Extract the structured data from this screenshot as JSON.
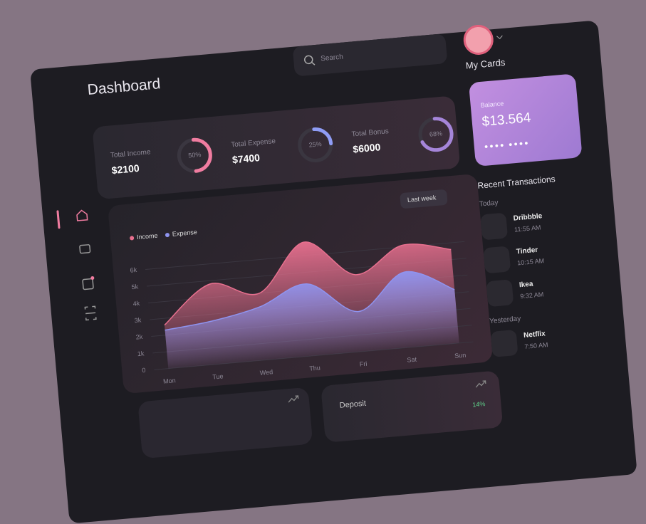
{
  "search": {
    "placeholder": "Search"
  },
  "title": "Dashboard",
  "stats": [
    {
      "label": "Total Income",
      "amount": "$2100",
      "percent": 50,
      "percent_label": "50%",
      "color": "#f07ca0"
    },
    {
      "label": "Total Expense",
      "amount": "$7400",
      "percent": 25,
      "percent_label": "25%",
      "color": "#8f9cf5"
    },
    {
      "label": "Total Bonus",
      "amount": "$6000",
      "percent": 68,
      "percent_label": "68%",
      "color": "#a585d9"
    }
  ],
  "chart": {
    "type": "area",
    "period": "Last week",
    "categories": [
      "Mon",
      "Tue",
      "Wed",
      "Thu",
      "Fri",
      "Sat",
      "Sun"
    ],
    "series": [
      {
        "name": "Income",
        "color": "#e8708f",
        "values": [
          2600,
          4800,
          4000,
          6800,
          4600,
          6100,
          5600
        ]
      },
      {
        "name": "Expense",
        "color": "#8f94f0",
        "values": [
          2300,
          2600,
          3200,
          4300,
          2400,
          4500,
          3200
        ]
      }
    ],
    "ylim": [
      0,
      7000
    ],
    "yticks": [
      0,
      {
        "value": 1000,
        "label": "1k"
      },
      {
        "value": 2000,
        "label": "2k"
      },
      {
        "value": 3000,
        "label": "3k"
      },
      {
        "value": 4000,
        "label": "4k"
      },
      {
        "value": 5000,
        "label": "5k"
      },
      {
        "value": 6000,
        "label": "6k"
      }
    ],
    "grid": true
  },
  "cards": {
    "title": "My Cards",
    "balance_label": "Balance",
    "balance": "$13.564"
  },
  "transactions": {
    "title": "Recent Transactions",
    "groups": [
      {
        "label": "Today",
        "items": [
          {
            "name": "Dribbble",
            "time": "11:55 AM"
          },
          {
            "name": "Tinder",
            "time": "10:15 AM"
          },
          {
            "name": "Ikea",
            "time": "9:32 AM"
          }
        ]
      },
      {
        "label": "Yesterday",
        "items": [
          {
            "name": "Netflix",
            "time": "7:50 AM"
          }
        ]
      }
    ]
  },
  "deposit": {
    "label": "Deposit",
    "change": "14%"
  }
}
